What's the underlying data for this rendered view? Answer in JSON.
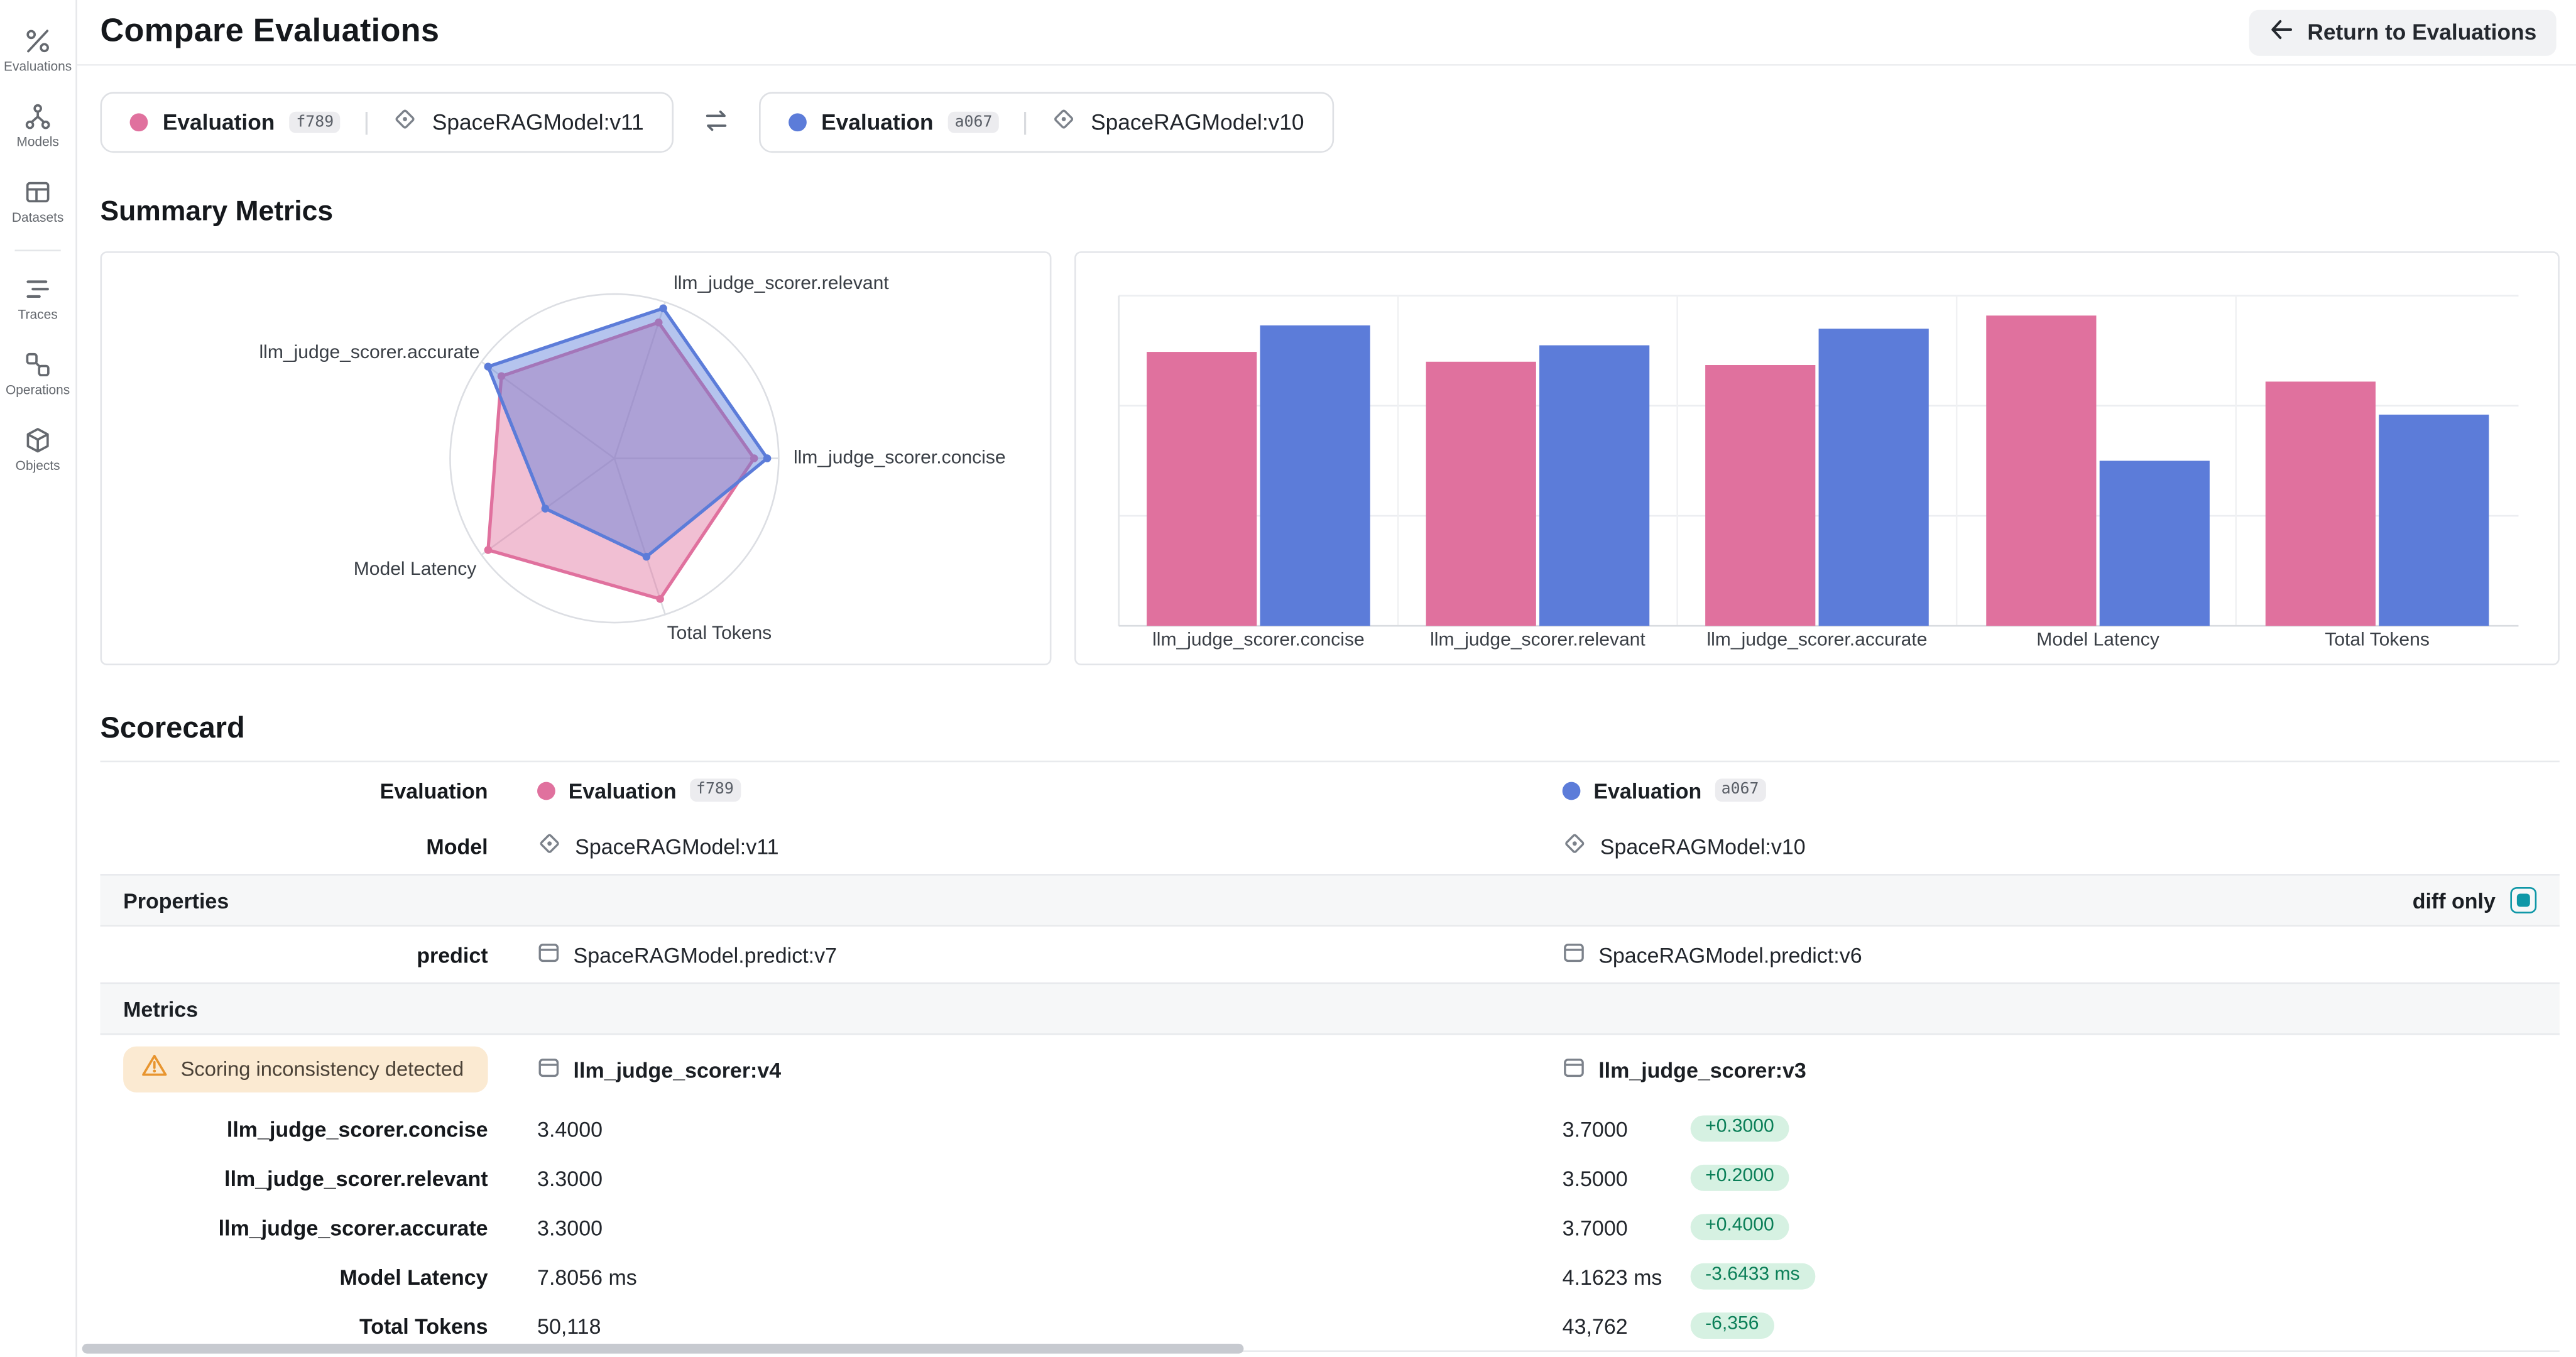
{
  "page": {
    "title": "Compare Evaluations",
    "return_button": "Return to Evaluations"
  },
  "sidebar": {
    "items": [
      {
        "label": "Evaluations",
        "icon": "evaluations-icon"
      },
      {
        "label": "Models",
        "icon": "models-icon"
      },
      {
        "label": "Datasets",
        "icon": "datasets-icon"
      },
      {
        "label": "Traces",
        "icon": "traces-icon"
      },
      {
        "label": "Operations",
        "icon": "operations-icon"
      },
      {
        "label": "Objects",
        "icon": "objects-icon"
      }
    ]
  },
  "compare_bar": {
    "left": {
      "label": "Evaluation",
      "badge": "f789",
      "model": "SpaceRAGModel:v11",
      "color": "#E0719E"
    },
    "right": {
      "label": "Evaluation",
      "badge": "a067",
      "model": "SpaceRAGModel:v10",
      "color": "#5C7CD9"
    }
  },
  "summary": {
    "heading": "Summary Metrics"
  },
  "chart_data": [
    {
      "type": "radar",
      "axes": [
        "llm_judge_scorer.relevant",
        "llm_judge_scorer.concise",
        "Total Tokens",
        "Model Latency",
        "llm_judge_scorer.accurate"
      ],
      "series": [
        {
          "name": "Evaluation f789",
          "color": "#E0719E",
          "values_normalized": [
            0.87,
            0.85,
            0.9,
            0.95,
            0.85
          ]
        },
        {
          "name": "Evaluation a067",
          "color": "#5C7CD9",
          "values_normalized": [
            0.96,
            0.93,
            0.63,
            0.52,
            0.95
          ]
        }
      ],
      "note": "values normalized to outer ring, estimated from pixels"
    },
    {
      "type": "bar",
      "categories": [
        "llm_judge_scorer.concise",
        "llm_judge_scorer.relevant",
        "llm_judge_scorer.accurate",
        "Model Latency",
        "Total Tokens"
      ],
      "series": [
        {
          "name": "Evaluation f789",
          "color": "#E0719E",
          "values_normalized": [
            0.83,
            0.8,
            0.79,
            0.94,
            0.74
          ]
        },
        {
          "name": "Evaluation a067",
          "color": "#5C7CD9",
          "values_normalized": [
            0.91,
            0.85,
            0.9,
            0.5,
            0.64
          ]
        }
      ],
      "ylim": [
        0,
        1
      ],
      "grid": true,
      "legend": false
    }
  ],
  "scorecard": {
    "heading": "Scorecard",
    "labels": {
      "evaluation": "Evaluation",
      "model": "Model",
      "properties": "Properties",
      "diff_only": "diff only",
      "predict": "predict",
      "metrics": "Metrics"
    },
    "predict": {
      "left": "SpaceRAGModel.predict:v7",
      "right": "SpaceRAGModel.predict:v6"
    },
    "scorer": {
      "warning": "Scoring inconsistency detected",
      "left": "llm_judge_scorer:v4",
      "right": "llm_judge_scorer:v3"
    },
    "metric_rows": [
      {
        "label": "llm_judge_scorer.concise",
        "left": "3.4000",
        "right": "3.7000",
        "delta": "+0.3000"
      },
      {
        "label": "llm_judge_scorer.relevant",
        "left": "3.3000",
        "right": "3.5000",
        "delta": "+0.2000"
      },
      {
        "label": "llm_judge_scorer.accurate",
        "left": "3.3000",
        "right": "3.7000",
        "delta": "+0.4000"
      },
      {
        "label": "Model Latency",
        "left": "7.8056 ms",
        "right": "4.1623 ms",
        "delta": "-3.6433 ms"
      },
      {
        "label": "Total Tokens",
        "left": "50,118",
        "right": "43,762",
        "delta": "-6,356"
      }
    ],
    "colors": {
      "delta_positive_bg": "#D6F1E2",
      "delta_positive_text": "#0B7F58",
      "warning_bg": "#FBEAD2",
      "warning_icon": "#E8952F",
      "diff_toggle_teal": "#0E97A7"
    }
  }
}
